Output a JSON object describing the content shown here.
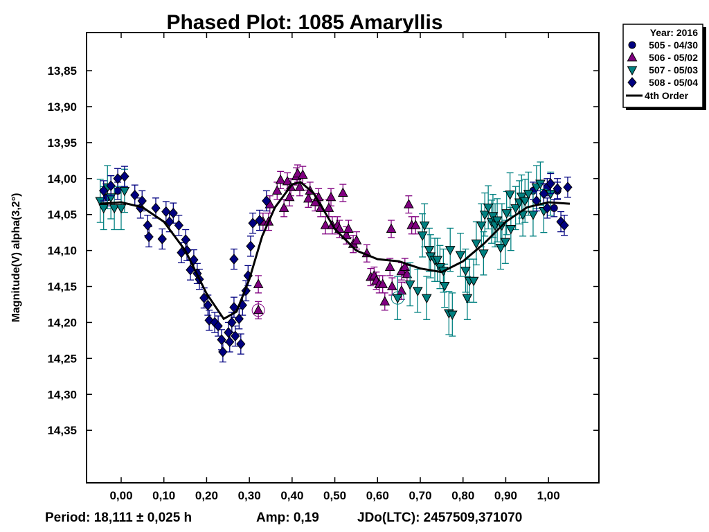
{
  "chart_data": {
    "type": "scatter",
    "title": "Phased Plot: 1085 Amaryllis",
    "xlabel": "",
    "ylabel": "Magnitude(V) alpha(3,2°)",
    "xlim": [
      -0.081,
      1.118
    ],
    "ylim": [
      13.797,
      14.423
    ],
    "y_inverted": true,
    "x_ticks": [
      "0,00",
      "0,10",
      "0,20",
      "0,30",
      "0,40",
      "0,50",
      "0,60",
      "0,70",
      "0,80",
      "0,90",
      "1,00"
    ],
    "x_tick_values": [
      0,
      0.1,
      0.2,
      0.3,
      0.4,
      0.5,
      0.6,
      0.7,
      0.8,
      0.9,
      1.0
    ],
    "y_ticks": [
      "13,85",
      "13,90",
      "13,95",
      "14,00",
      "14,05",
      "14,10",
      "14,15",
      "14,20",
      "14,25",
      "14,30",
      "14,35"
    ],
    "y_tick_values": [
      13.85,
      13.9,
      13.95,
      14.0,
      14.05,
      14.1,
      14.15,
      14.2,
      14.25,
      14.3,
      14.35
    ],
    "legend": {
      "title": "Year: 2016",
      "placement": "top-right outside"
    },
    "series": [
      {
        "name": "505 - 04/30",
        "marker": "circle",
        "color": "#000080",
        "err": 0.012,
        "points": [
          [
            0.964,
            14.017
          ],
          [
            0.997,
            14.012
          ],
          [
            1.021,
            14.017
          ],
          [
            1.013,
            14.041
          ],
          [
            -0.032,
            14.026
          ],
          [
            -0.008,
            14.017
          ]
        ]
      },
      {
        "name": "506 - 05/02",
        "marker": "triangle-up",
        "color": "#800080",
        "err": 0.012,
        "ringed": [
          0
        ],
        "points": [
          [
            0.321,
            14.183
          ],
          [
            0.321,
            14.147
          ],
          [
            0.332,
            14.06
          ],
          [
            0.348,
            14.036
          ],
          [
            0.365,
            14.017
          ],
          [
            0.373,
            14.002
          ],
          [
            0.381,
            14.041
          ],
          [
            0.389,
            14.004
          ],
          [
            0.394,
            14.026
          ],
          [
            0.397,
            14.012
          ],
          [
            0.41,
            13.997
          ],
          [
            0.413,
            13.993
          ],
          [
            0.418,
            14.012
          ],
          [
            0.425,
            13.995
          ],
          [
            0.438,
            14.028
          ],
          [
            0.442,
            14.017
          ],
          [
            0.454,
            14.033
          ],
          [
            0.462,
            14.026
          ],
          [
            0.467,
            14.041
          ],
          [
            0.478,
            14.065
          ],
          [
            0.486,
            14.041
          ],
          [
            0.491,
            14.026
          ],
          [
            0.494,
            14.065
          ],
          [
            0.506,
            14.065
          ],
          [
            0.511,
            14.07
          ],
          [
            0.519,
            14.02
          ],
          [
            0.527,
            14.079
          ],
          [
            0.532,
            14.07
          ],
          [
            0.543,
            14.091
          ],
          [
            0.551,
            14.086
          ],
          [
            0.575,
            14.104
          ],
          [
            0.584,
            14.137
          ],
          [
            0.592,
            14.135
          ],
          [
            0.597,
            14.142
          ],
          [
            0.604,
            14.147
          ],
          [
            0.612,
            14.147
          ],
          [
            0.617,
            14.171
          ],
          [
            0.629,
            14.123
          ],
          [
            0.634,
            14.15
          ],
          [
            0.632,
            14.07
          ],
          [
            0.656,
            14.129
          ],
          [
            0.664,
            14.123
          ],
          [
            0.669,
            14.133
          ],
          [
            0.673,
            14.036
          ],
          [
            0.68,
            14.065
          ],
          [
            0.689,
            14.065
          ],
          [
            0.656,
            14.156
          ],
          [
            0.345,
            14.06
          ]
        ]
      },
      {
        "name": "507 - 05/03",
        "marker": "triangle-down",
        "color": "#008080",
        "err": 0.03,
        "ringed": [
          0
        ],
        "points": [
          [
            0.647,
            14.166
          ],
          [
            0.676,
            14.147
          ],
          [
            0.694,
            14.156
          ],
          [
            0.715,
            14.166
          ],
          [
            0.71,
            14.065
          ],
          [
            0.705,
            14.079
          ],
          [
            0.721,
            14.099
          ],
          [
            0.724,
            14.108
          ],
          [
            0.734,
            14.113
          ],
          [
            0.746,
            14.123
          ],
          [
            0.74,
            14.113
          ],
          [
            0.754,
            14.128
          ],
          [
            0.757,
            14.149
          ],
          [
            0.77,
            14.099
          ],
          [
            0.767,
            14.187
          ],
          [
            0.775,
            14.189
          ],
          [
            0.794,
            14.106
          ],
          [
            0.806,
            14.128
          ],
          [
            0.81,
            14.166
          ],
          [
            0.815,
            14.142
          ],
          [
            0.825,
            14.142
          ],
          [
            0.831,
            14.09
          ],
          [
            0.843,
            14.065
          ],
          [
            0.848,
            14.104
          ],
          [
            0.851,
            14.05
          ],
          [
            0.859,
            14.04
          ],
          [
            0.867,
            14.06
          ],
          [
            0.87,
            14.052
          ],
          [
            0.875,
            14.065
          ],
          [
            0.88,
            14.058
          ],
          [
            0.891,
            14.065
          ],
          [
            0.888,
            14.096
          ],
          [
            0.899,
            14.088
          ],
          [
            0.902,
            14.048
          ],
          [
            0.91,
            14.022
          ],
          [
            0.912,
            14.07
          ],
          [
            0.923,
            14.041
          ],
          [
            0.932,
            14.033
          ],
          [
            0.937,
            14.025
          ],
          [
            0.94,
            14.05
          ],
          [
            0.945,
            14.031
          ],
          [
            0.953,
            14.021
          ],
          [
            0.964,
            14.05
          ],
          [
            0.972,
            14.012
          ],
          [
            0.981,
            14.007
          ],
          [
            0.989,
            14.045
          ],
          [
            1.005,
            14.021
          ],
          [
            -0.049,
            14.031
          ],
          [
            -0.041,
            14.041
          ],
          [
            -0.032,
            14.012
          ],
          [
            -0.016,
            14.041
          ],
          [
            0.008,
            14.017
          ],
          [
            0.0,
            14.041
          ],
          [
            -0.024,
            14.026
          ]
        ]
      },
      {
        "name": "508 - 05/04",
        "marker": "diamond",
        "color": "#000080",
        "err": 0.014,
        "points": [
          [
            -0.041,
            14.017
          ],
          [
            -0.024,
            14.01
          ],
          [
            -0.008,
            14.0
          ],
          [
            0.008,
            13.997
          ],
          [
            0.032,
            14.023
          ],
          [
            0.045,
            14.041
          ],
          [
            0.062,
            14.065
          ],
          [
            0.065,
            14.081
          ],
          [
            0.081,
            14.041
          ],
          [
            0.096,
            14.084
          ],
          [
            0.105,
            14.046
          ],
          [
            0.122,
            14.048
          ],
          [
            0.135,
            14.065
          ],
          [
            0.141,
            14.103
          ],
          [
            0.154,
            14.1
          ],
          [
            0.162,
            14.127
          ],
          [
            0.17,
            14.113
          ],
          [
            0.183,
            14.14
          ],
          [
            0.194,
            14.166
          ],
          [
            0.203,
            14.176
          ],
          [
            0.206,
            14.197
          ],
          [
            0.219,
            14.2
          ],
          [
            0.227,
            14.205
          ],
          [
            0.235,
            14.224
          ],
          [
            0.238,
            14.241
          ],
          [
            0.251,
            14.214
          ],
          [
            0.254,
            14.227
          ],
          [
            0.259,
            14.2
          ],
          [
            0.264,
            14.179
          ],
          [
            0.267,
            14.219
          ],
          [
            0.28,
            14.23
          ],
          [
            0.276,
            14.195
          ],
          [
            0.284,
            14.176
          ],
          [
            0.292,
            14.156
          ],
          [
            0.297,
            14.135
          ],
          [
            0.264,
            14.112
          ],
          [
            0.303,
            14.094
          ],
          [
            0.308,
            14.062
          ],
          [
            0.324,
            14.058
          ],
          [
            0.34,
            14.031
          ],
          [
            0.049,
            14.031
          ],
          [
            0.178,
            14.132
          ],
          [
            0.151,
            14.085
          ],
          [
            0.113,
            14.06
          ],
          [
            0.972,
            14.031
          ],
          [
            0.989,
            14.021
          ],
          [
            1.005,
            14.007
          ],
          [
            1.021,
            14.014
          ],
          [
            1.029,
            14.06
          ],
          [
            1.037,
            14.065
          ],
          [
            1.045,
            14.012
          ],
          [
            0.997,
            14.041
          ]
        ]
      }
    ],
    "fit": {
      "name": "4th Order",
      "color": "#000000",
      "points": [
        [
          -0.05,
          14.035
        ],
        [
          0,
          14.033
        ],
        [
          0.05,
          14.04
        ],
        [
          0.1,
          14.06
        ],
        [
          0.15,
          14.1
        ],
        [
          0.2,
          14.16
        ],
        [
          0.24,
          14.195
        ],
        [
          0.27,
          14.185
        ],
        [
          0.3,
          14.14
        ],
        [
          0.33,
          14.08
        ],
        [
          0.36,
          14.04
        ],
        [
          0.4,
          14.008
        ],
        [
          0.42,
          14.005
        ],
        [
          0.45,
          14.02
        ],
        [
          0.5,
          14.07
        ],
        [
          0.55,
          14.1
        ],
        [
          0.6,
          14.112
        ],
        [
          0.65,
          14.115
        ],
        [
          0.7,
          14.125
        ],
        [
          0.75,
          14.13
        ],
        [
          0.8,
          14.115
        ],
        [
          0.85,
          14.09
        ],
        [
          0.9,
          14.06
        ],
        [
          0.95,
          14.04
        ],
        [
          1.0,
          14.033
        ],
        [
          1.05,
          14.035
        ]
      ]
    }
  },
  "footer": {
    "period": "Period: 18,111 ± 0,025 h",
    "amp": "Amp: 0,19",
    "jd": "JDo(LTC): 2457509,371070"
  }
}
